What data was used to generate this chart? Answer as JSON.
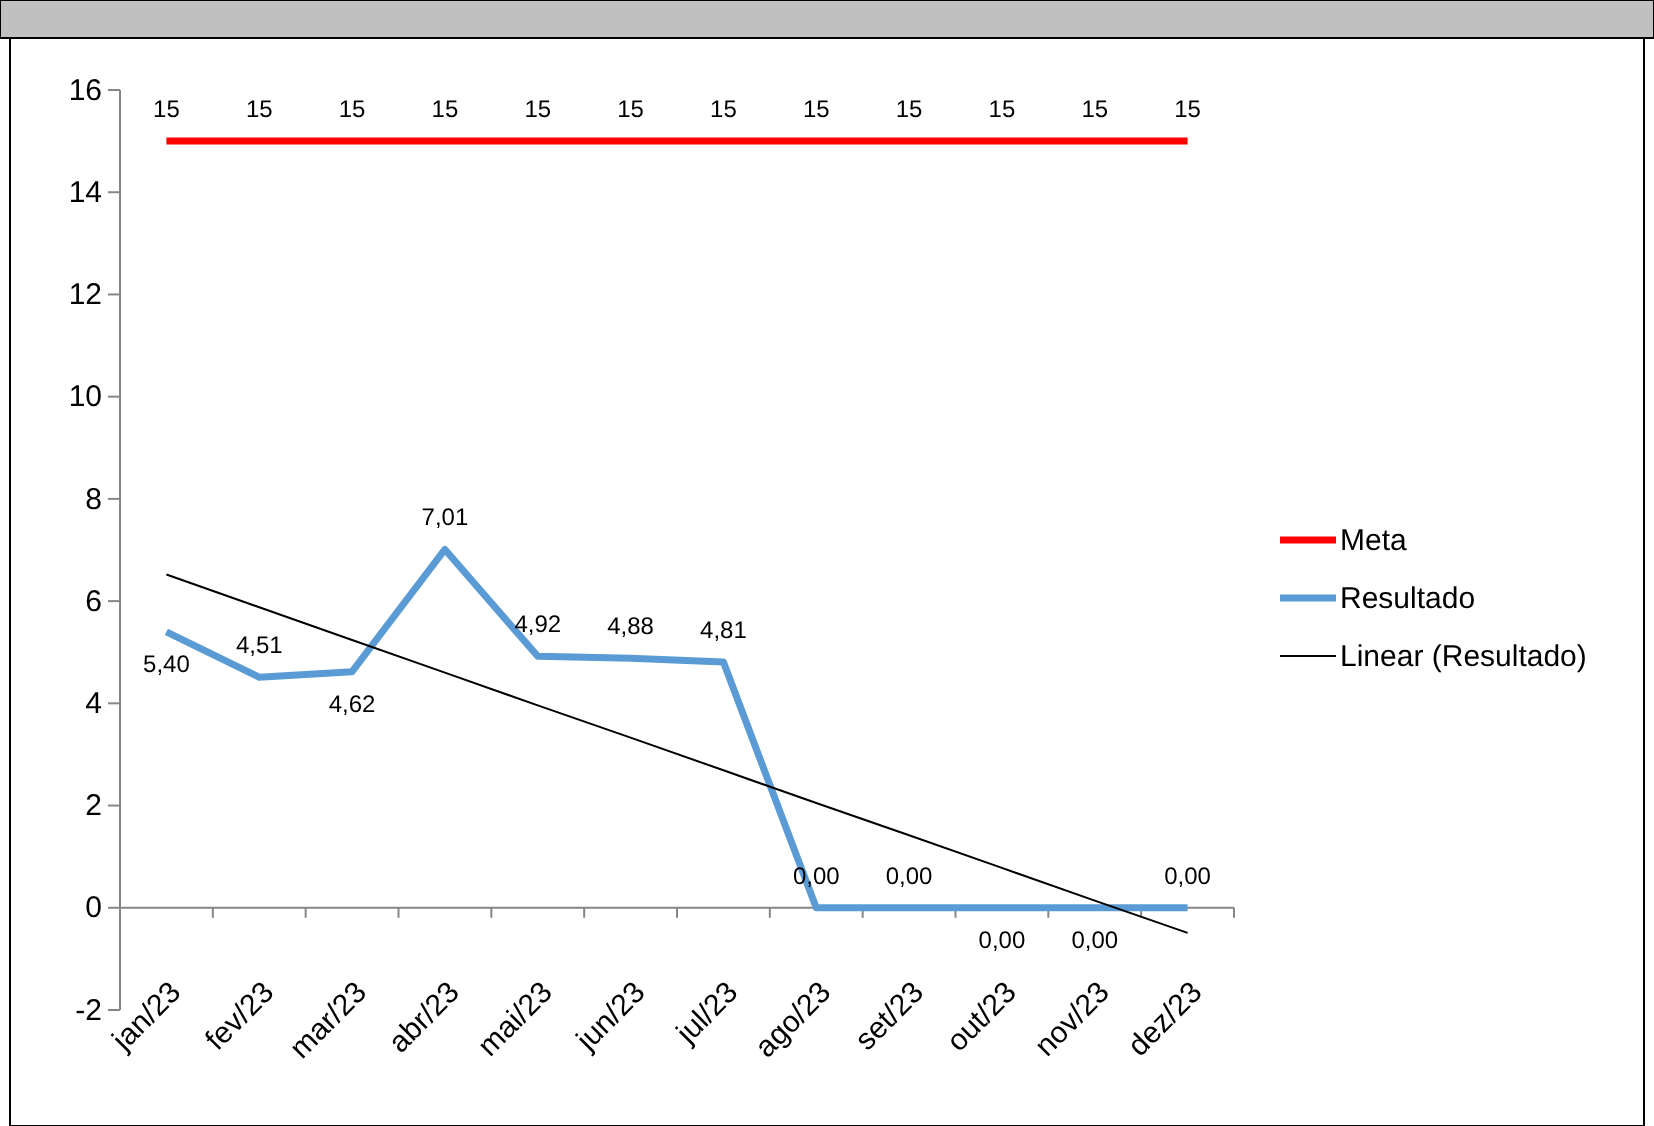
{
  "chart_data": {
    "type": "line",
    "categories": [
      "jan/23",
      "fev/23",
      "mar/23",
      "abr/23",
      "mai/23",
      "jun/23",
      "jul/23",
      "ago/23",
      "set/23",
      "out/23",
      "nov/23",
      "dez/23"
    ],
    "series": [
      {
        "name": "Meta",
        "color": "#ff0000",
        "values": [
          15,
          15,
          15,
          15,
          15,
          15,
          15,
          15,
          15,
          15,
          15,
          15
        ],
        "value_labels": [
          "15",
          "15",
          "15",
          "15",
          "15",
          "15",
          "15",
          "15",
          "15",
          "15",
          "15",
          "15"
        ]
      },
      {
        "name": "Resultado",
        "color": "#5b9bd5",
        "values": [
          5.4,
          4.51,
          4.62,
          7.01,
          4.92,
          4.88,
          4.81,
          0,
          0,
          0,
          0,
          0
        ],
        "value_labels": [
          "5,40",
          "4,51",
          "4,62",
          "7,01",
          "4,92",
          "4,88",
          "4,81",
          "0,00",
          "0,00",
          "0,00",
          "0,00",
          "0,00"
        ]
      },
      {
        "name": "Linear (Resultado)",
        "color": "#000000",
        "values": [
          6.52,
          5.88,
          5.24,
          4.6,
          3.96,
          3.33,
          2.69,
          2.05,
          1.42,
          0.78,
          0.14,
          -0.49
        ]
      }
    ],
    "ylim": [
      -2,
      16
    ],
    "yticks": [
      -2,
      0,
      2,
      4,
      6,
      8,
      10,
      12,
      14,
      16
    ],
    "legend": "right",
    "marker": "none",
    "line_style": "solid"
  }
}
